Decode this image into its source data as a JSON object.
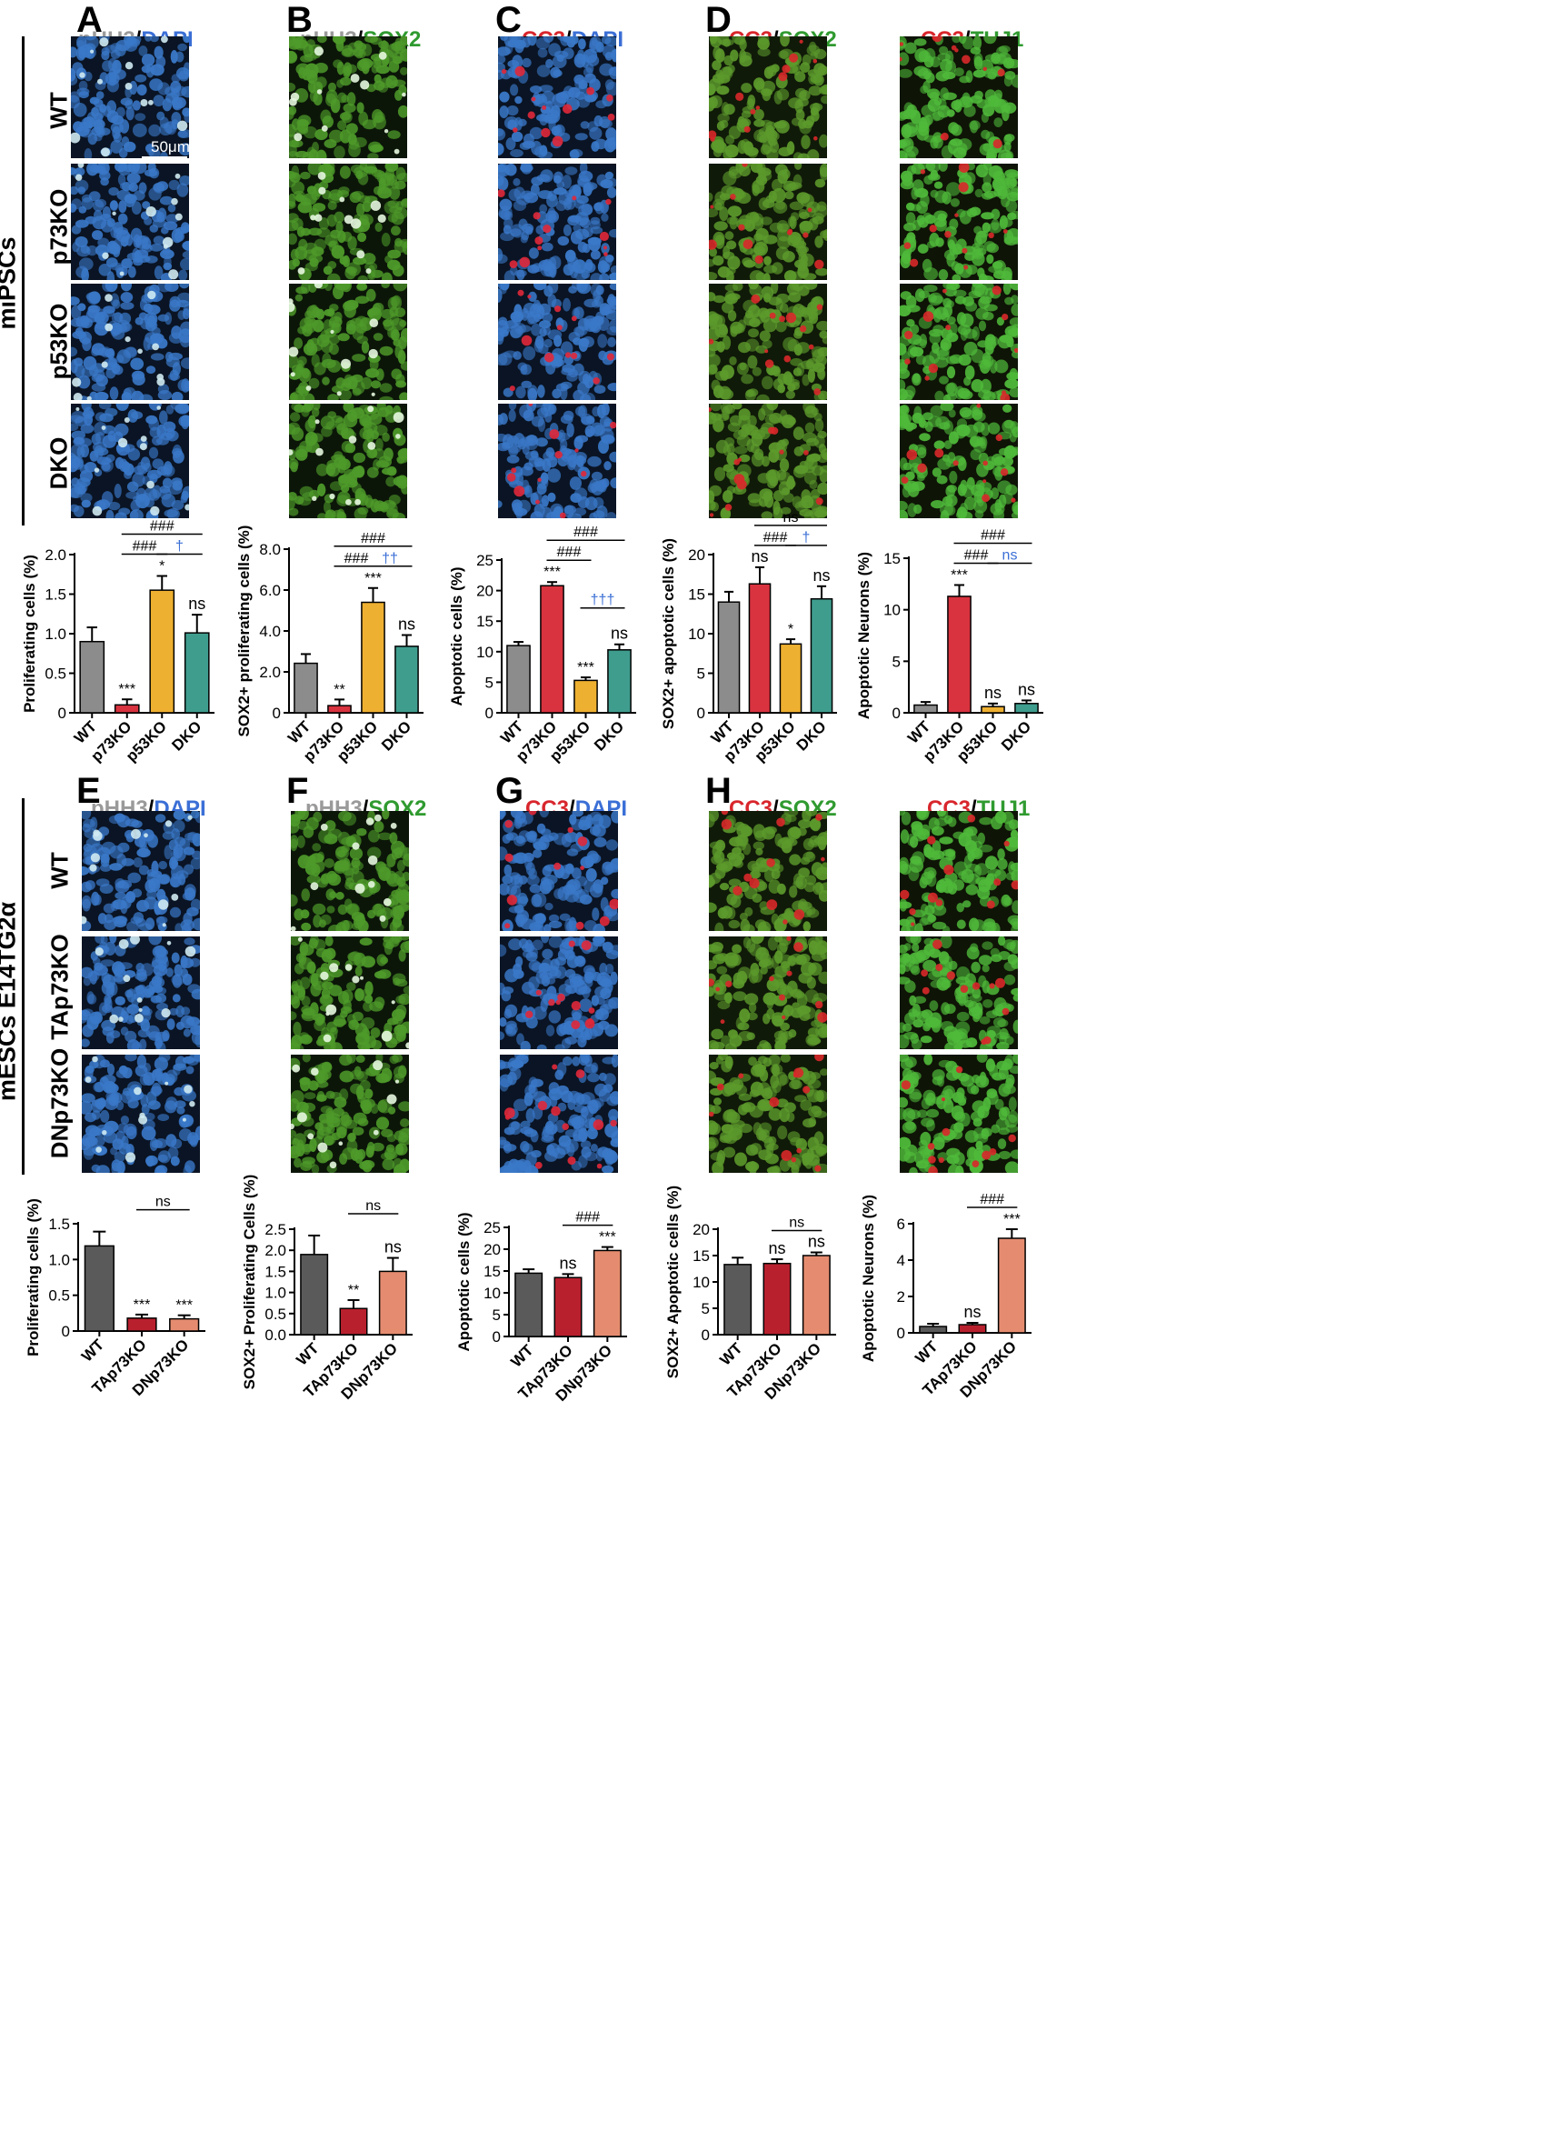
{
  "figure": {
    "panels_top": [
      {
        "letter": "A",
        "stain": [
          {
            "text": "pHH3",
            "color": "#9a9a9a"
          },
          {
            "text": "/",
            "color": "#000000"
          },
          {
            "text": "DAPI",
            "color": "#3b6fd6"
          }
        ]
      },
      {
        "letter": "B",
        "stain": [
          {
            "text": "pHH3",
            "color": "#9a9a9a"
          },
          {
            "text": "/",
            "color": "#000000"
          },
          {
            "text": "SOX2",
            "color": "#2f9a2f"
          }
        ]
      },
      {
        "letter": "C",
        "stain": [
          {
            "text": "CC3",
            "color": "#d8262c"
          },
          {
            "text": "/",
            "color": "#000000"
          },
          {
            "text": "DAPI",
            "color": "#3b6fd6"
          }
        ]
      },
      {
        "letter": "D",
        "stain": [
          {
            "text": "CC3",
            "color": "#d8262c"
          },
          {
            "text": "/",
            "color": "#000000"
          },
          {
            "text": "SOX2",
            "color": "#2f9a2f"
          }
        ]
      },
      {
        "letter": "",
        "stain": [
          {
            "text": "CC3",
            "color": "#d8262c"
          },
          {
            "text": "/",
            "color": "#000000"
          },
          {
            "text": "TUJ1",
            "color": "#2f9a2f"
          }
        ]
      }
    ],
    "panels_bottom": [
      {
        "letter": "E",
        "stain": [
          {
            "text": "pHH3",
            "color": "#9a9a9a"
          },
          {
            "text": "/",
            "color": "#000000"
          },
          {
            "text": "DAPI",
            "color": "#3b6fd6"
          }
        ]
      },
      {
        "letter": "F",
        "stain": [
          {
            "text": "pHH3",
            "color": "#9a9a9a"
          },
          {
            "text": "/",
            "color": "#000000"
          },
          {
            "text": "SOX2",
            "color": "#2f9a2f"
          }
        ]
      },
      {
        "letter": "G",
        "stain": [
          {
            "text": "CC3",
            "color": "#d8262c"
          },
          {
            "text": "/",
            "color": "#000000"
          },
          {
            "text": "DAPI",
            "color": "#3b6fd6"
          }
        ]
      },
      {
        "letter": "H",
        "stain": [
          {
            "text": "CC3",
            "color": "#d8262c"
          },
          {
            "text": "/",
            "color": "#000000"
          },
          {
            "text": "SOX2",
            "color": "#2f9a2f"
          }
        ]
      },
      {
        "letter": "",
        "stain": [
          {
            "text": "CC3",
            "color": "#d8262c"
          },
          {
            "text": "/",
            "color": "#000000"
          },
          {
            "text": "TUJ1",
            "color": "#2f9a2f"
          }
        ]
      }
    ],
    "group_top": "miPSCs",
    "group_bottom": "mESCs E14TG2α",
    "rows_top": [
      "WT",
      "p73KO",
      "p53KO",
      "DKO"
    ],
    "rows_bottom": [
      "WT",
      "TAp73KO",
      "DNp73KO"
    ],
    "scale_bar": "50μm",
    "colors": {
      "WT_top": "#8c8c8c",
      "p73KO": "#d8333f",
      "p53KO": "#eeb030",
      "DKO": "#3f9d8e",
      "WT_bottom": "#5a5a5a",
      "TAp73KO": "#b8202e",
      "DNp73KO": "#e58c70",
      "hash": "#000000",
      "dagger": "#3b6fd6"
    }
  },
  "chart_data": [
    {
      "type": "bar",
      "ylabel": "Proliferating cells (%)",
      "categories": [
        "WT",
        "p73KO",
        "p53KO",
        "DKO"
      ],
      "values": [
        0.9,
        0.1,
        1.55,
        1.01
      ],
      "errors": [
        0.18,
        0.07,
        0.18,
        0.23
      ],
      "ylim": [
        0,
        2.0
      ],
      "yticks": [
        "0",
        "0.5",
        "1.0",
        "1.5",
        "2.0"
      ],
      "ytick_values": [
        0,
        0.5,
        1.0,
        1.5,
        2.0
      ],
      "colors": [
        "#8c8c8c",
        "#d8333f",
        "#eeb030",
        "#3f9d8e"
      ],
      "sig": [
        "",
        "***",
        "*",
        "ns"
      ],
      "brackets": [
        {
          "from": 1,
          "to": 3,
          "label": "###",
          "color": "#000000",
          "level": 2
        },
        {
          "from": 1,
          "to": 2,
          "label": "###",
          "color": "#000000",
          "level": 1
        },
        {
          "from": 2,
          "to": 3,
          "label": "†",
          "color": "#3b6fd6",
          "level": 1
        }
      ]
    },
    {
      "type": "bar",
      "ylabel": "SOX2+ proliferating cells (%)",
      "categories": [
        "WT",
        "p73KO",
        "p53KO",
        "DKO"
      ],
      "values": [
        2.42,
        0.35,
        5.4,
        3.25
      ],
      "errors": [
        0.45,
        0.3,
        0.7,
        0.55
      ],
      "ylim": [
        0,
        8.0
      ],
      "yticks": [
        "0",
        "2.0",
        "4.0",
        "6.0",
        "8.0"
      ],
      "ytick_values": [
        0,
        2,
        4,
        6,
        8
      ],
      "colors": [
        "#8c8c8c",
        "#d8333f",
        "#eeb030",
        "#3f9d8e"
      ],
      "sig": [
        "",
        "**",
        "***",
        "ns"
      ],
      "brackets": [
        {
          "from": 1,
          "to": 3,
          "label": "###",
          "color": "#000000",
          "level": 2
        },
        {
          "from": 1,
          "to": 2,
          "label": "###",
          "color": "#000000",
          "level": 1
        },
        {
          "from": 2,
          "to": 3,
          "label": "††",
          "color": "#3b6fd6",
          "level": 1
        }
      ]
    },
    {
      "type": "bar",
      "ylabel": "Apoptotic cells (%)",
      "categories": [
        "WT",
        "p73KO",
        "p53KO",
        "DKO"
      ],
      "values": [
        11.0,
        20.8,
        5.3,
        10.3
      ],
      "errors": [
        0.6,
        0.6,
        0.5,
        0.9
      ],
      "ylim": [
        0,
        25
      ],
      "yticks": [
        "0",
        "5",
        "10",
        "15",
        "20",
        "25"
      ],
      "ytick_values": [
        0,
        5,
        10,
        15,
        20,
        25
      ],
      "colors": [
        "#8c8c8c",
        "#d8333f",
        "#eeb030",
        "#3f9d8e"
      ],
      "sig": [
        "",
        "***",
        "***",
        "ns"
      ],
      "brackets": [
        {
          "from": 1,
          "to": 3,
          "label": "###",
          "color": "#000000",
          "level": 2
        },
        {
          "from": 1,
          "to": 2,
          "label": "###",
          "color": "#000000",
          "level": 1
        },
        {
          "from": 2,
          "to": 3,
          "label": "†††",
          "color": "#3b6fd6",
          "level": 0
        }
      ]
    },
    {
      "type": "bar",
      "ylabel": "SOX2+ apoptotic cells (%)",
      "categories": [
        "WT",
        "p73KO",
        "p53KO",
        "DKO"
      ],
      "values": [
        14.0,
        16.3,
        8.7,
        14.4
      ],
      "errors": [
        1.3,
        2.1,
        0.6,
        1.6
      ],
      "ylim": [
        0,
        20
      ],
      "yticks": [
        "0",
        "5",
        "10",
        "15",
        "20"
      ],
      "ytick_values": [
        0,
        5,
        10,
        15,
        20
      ],
      "colors": [
        "#8c8c8c",
        "#d8333f",
        "#eeb030",
        "#3f9d8e"
      ],
      "sig": [
        "",
        "ns",
        "*",
        "ns"
      ],
      "brackets": [
        {
          "from": 1,
          "to": 3,
          "label": "ns",
          "color": "#000000",
          "level": 2
        },
        {
          "from": 1,
          "to": 2,
          "label": "###",
          "color": "#000000",
          "level": 1
        },
        {
          "from": 2,
          "to": 3,
          "label": "†",
          "color": "#3b6fd6",
          "level": 1
        }
      ]
    },
    {
      "type": "bar",
      "ylabel": "Apoptotic Neurons (%)",
      "categories": [
        "WT",
        "p73KO",
        "p53KO",
        "DKO"
      ],
      "values": [
        0.75,
        11.3,
        0.6,
        0.9
      ],
      "errors": [
        0.3,
        1.1,
        0.3,
        0.3
      ],
      "ylim": [
        0,
        15
      ],
      "yticks": [
        "0",
        "5",
        "10",
        "15"
      ],
      "ytick_values": [
        0,
        5,
        10,
        15
      ],
      "colors": [
        "#8c8c8c",
        "#d8333f",
        "#eeb030",
        "#3f9d8e"
      ],
      "sig": [
        "",
        "***",
        "ns",
        "ns"
      ],
      "brackets": [
        {
          "from": 1,
          "to": 3,
          "label": "###",
          "color": "#000000",
          "level": 2
        },
        {
          "from": 1,
          "to": 2,
          "label": "###",
          "color": "#000000",
          "level": 1
        },
        {
          "from": 2,
          "to": 3,
          "label": "ns",
          "color": "#3b6fd6",
          "level": 1
        }
      ]
    },
    {
      "type": "bar",
      "ylabel": "Proliferating cells (%)",
      "categories": [
        "WT",
        "TAp73KO",
        "DNp73KO"
      ],
      "values": [
        1.19,
        0.18,
        0.17
      ],
      "errors": [
        0.2,
        0.05,
        0.05
      ],
      "ylim": [
        0,
        1.5
      ],
      "yticks": [
        "0",
        "0.5",
        "1.0",
        "1.5"
      ],
      "ytick_values": [
        0,
        0.5,
        1.0,
        1.5
      ],
      "colors": [
        "#5a5a5a",
        "#b8202e",
        "#e58c70"
      ],
      "sig": [
        "",
        "***",
        "***"
      ],
      "brackets": [
        {
          "from": 1,
          "to": 2,
          "label": "ns",
          "color": "#000000",
          "level": 1
        }
      ]
    },
    {
      "type": "bar",
      "ylabel": "SOX2+ Proliferating Cells (%)",
      "categories": [
        "WT",
        "TAp73KO",
        "DNp73KO"
      ],
      "values": [
        1.9,
        0.62,
        1.5
      ],
      "errors": [
        0.45,
        0.2,
        0.32
      ],
      "ylim": [
        0,
        2.5
      ],
      "yticks": [
        "0.0",
        "0.5",
        "1.0",
        "1.5",
        "2.0",
        "2.5"
      ],
      "ytick_values": [
        0,
        0.5,
        1.0,
        1.5,
        2.0,
        2.5
      ],
      "colors": [
        "#5a5a5a",
        "#b8202e",
        "#e58c70"
      ],
      "sig": [
        "",
        "**",
        "ns"
      ],
      "brackets": [
        {
          "from": 1,
          "to": 2,
          "label": "ns",
          "color": "#000000",
          "level": 1
        }
      ]
    },
    {
      "type": "bar",
      "ylabel": "Apoptotic cells (%)",
      "categories": [
        "WT",
        "TAp73KO",
        "DNp73KO"
      ],
      "values": [
        14.5,
        13.5,
        19.7
      ],
      "errors": [
        0.9,
        0.8,
        0.8
      ],
      "ylim": [
        0,
        25
      ],
      "yticks": [
        "0",
        "5",
        "10",
        "15",
        "20",
        "25"
      ],
      "ytick_values": [
        0,
        5,
        10,
        15,
        20,
        25
      ],
      "colors": [
        "#5a5a5a",
        "#b8202e",
        "#e58c70"
      ],
      "sig": [
        "",
        "ns",
        "***"
      ],
      "brackets": [
        {
          "from": 1,
          "to": 2,
          "label": "###",
          "color": "#000000",
          "level": 1
        }
      ]
    },
    {
      "type": "bar",
      "ylabel": "SOX2+ Apoptotic cells (%)",
      "categories": [
        "WT",
        "TAp73KO",
        "DNp73KO"
      ],
      "values": [
        13.3,
        13.5,
        15.0
      ],
      "errors": [
        1.3,
        0.8,
        0.6
      ],
      "ylim": [
        0,
        20
      ],
      "yticks": [
        "0",
        "5",
        "10",
        "15",
        "20"
      ],
      "ytick_values": [
        0,
        5,
        10,
        15,
        20
      ],
      "colors": [
        "#5a5a5a",
        "#b8202e",
        "#e58c70"
      ],
      "sig": [
        "",
        "ns",
        "ns"
      ],
      "brackets": [
        {
          "from": 1,
          "to": 2,
          "label": "ns",
          "color": "#000000",
          "level": 1
        }
      ]
    },
    {
      "type": "bar",
      "ylabel": "Apoptotic Neurons (%)",
      "categories": [
        "WT",
        "TAp73KO",
        "DNp73KO"
      ],
      "values": [
        0.35,
        0.45,
        5.2
      ],
      "errors": [
        0.15,
        0.1,
        0.5
      ],
      "ylim": [
        0,
        6
      ],
      "yticks": [
        "0",
        "2",
        "4",
        "6"
      ],
      "ytick_values": [
        0,
        2,
        4,
        6
      ],
      "colors": [
        "#5a5a5a",
        "#b8202e",
        "#e58c70"
      ],
      "sig": [
        "",
        "ns",
        "***"
      ],
      "brackets": [
        {
          "from": 1,
          "to": 2,
          "label": "###",
          "color": "#000000",
          "level": 1
        }
      ]
    }
  ]
}
